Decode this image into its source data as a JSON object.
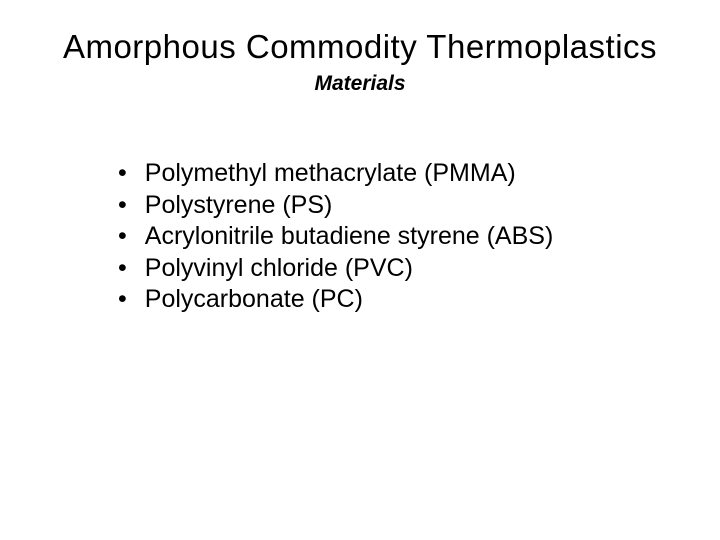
{
  "slide": {
    "title": "Amorphous Commodity Thermoplastics",
    "subtitle": "Materials",
    "bullets": [
      "Polymethyl methacrylate (PMMA)",
      "Polystyrene (PS)",
      "Acrylonitrile butadiene styrene (ABS)",
      "Polyvinyl chloride (PVC)",
      "Polycarbonate (PC)"
    ],
    "bullet_marker": "•"
  },
  "styling": {
    "background_color": "#ffffff",
    "text_color": "#000000",
    "title_fontsize": 33,
    "title_fontweight": "normal",
    "subtitle_fontsize": 21,
    "subtitle_fontstyle": "italic",
    "subtitle_fontweight": "bold",
    "bullet_fontsize": 25,
    "font_family": "Arial"
  }
}
